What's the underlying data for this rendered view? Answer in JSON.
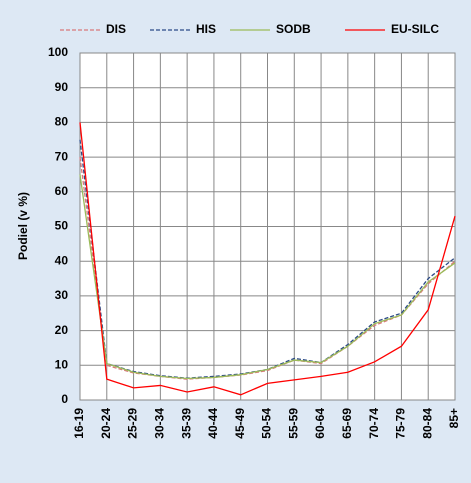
{
  "chart_data": {
    "type": "line",
    "y_label": "Podiel (v %)",
    "categories": [
      "16-19",
      "20-24",
      "25-29",
      "30-34",
      "35-39",
      "40-44",
      "45-49",
      "50-54",
      "55-59",
      "60-64",
      "65-69",
      "70-74",
      "75-79",
      "80-84",
      "85+"
    ],
    "series": [
      {
        "name": "DIS",
        "color": "#d9777a",
        "dashed": true,
        "values": [
          70,
          10,
          7.8,
          6.8,
          6,
          6.5,
          7.2,
          8.5,
          11.5,
          10.5,
          15.5,
          21.5,
          24.5,
          33.5,
          40
        ]
      },
      {
        "name": "HIS",
        "color": "#2b4a86",
        "dashed": true,
        "values": [
          75,
          10.5,
          8.2,
          7,
          6.3,
          6.8,
          7.5,
          8.8,
          12,
          10.8,
          16,
          22.5,
          25,
          35,
          41
        ]
      },
      {
        "name": "SODB",
        "color": "#9bbb59",
        "dashed": false,
        "values": [
          65,
          10.5,
          8,
          6.8,
          6.2,
          6.5,
          7.3,
          8.8,
          11.5,
          10.8,
          15.5,
          22,
          24.5,
          34,
          39.5
        ]
      },
      {
        "name": "EU-SILC",
        "color": "#ff0000",
        "dashed": false,
        "values": [
          80,
          6,
          3.5,
          4.2,
          2.3,
          3.8,
          1.5,
          4.8,
          5.8,
          6.8,
          8,
          11,
          15.5,
          26,
          53
        ]
      }
    ],
    "ylim": [
      0,
      100
    ],
    "yticks": [
      0,
      10,
      20,
      30,
      40,
      50,
      60,
      70,
      80,
      90,
      100
    ],
    "grid": true,
    "legend": "top"
  }
}
